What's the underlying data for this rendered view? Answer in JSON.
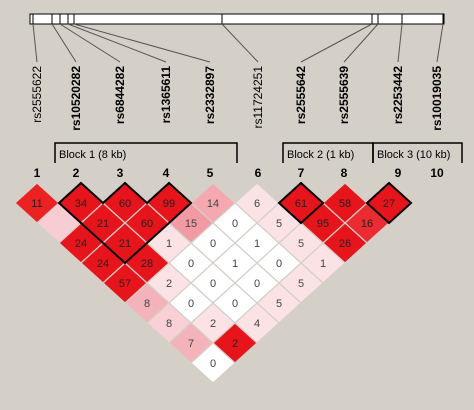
{
  "snps": [
    {
      "index": "1",
      "name": "rs2555622",
      "bold": false
    },
    {
      "index": "2",
      "name": "rs10520282",
      "bold": true
    },
    {
      "index": "3",
      "name": "rs6844282",
      "bold": true
    },
    {
      "index": "4",
      "name": "rs1365611",
      "bold": true
    },
    {
      "index": "5",
      "name": "rs2332897",
      "bold": true
    },
    {
      "index": "6",
      "name": "rs11724251",
      "bold": false
    },
    {
      "index": "7",
      "name": "rs2555642",
      "bold": true
    },
    {
      "index": "8",
      "name": "rs2555639",
      "bold": true
    },
    {
      "index": "9",
      "name": "rs2253442",
      "bold": true
    },
    {
      "index": "10",
      "name": "rs10019035",
      "bold": true
    }
  ],
  "blocks": [
    {
      "label": "Block 1 (8 kb)",
      "from": 2,
      "to": 5
    },
    {
      "label": "Block 2 (1 kb)",
      "from": 7,
      "to": 8
    },
    {
      "label": "Block 3 (10 kb)",
      "from": 9,
      "to": 10
    }
  ],
  "ld_matrix": [
    {
      "i": 1,
      "j": 2,
      "value": "11",
      "color": "#ec2222"
    },
    {
      "i": 2,
      "j": 3,
      "value": "34",
      "color": "#e8141c"
    },
    {
      "i": 3,
      "j": 4,
      "value": "60",
      "color": "#e8141c"
    },
    {
      "i": 4,
      "j": 5,
      "value": "99",
      "color": "#e8141c"
    },
    {
      "i": 5,
      "j": 6,
      "value": "14",
      "color": "#f5a8b0"
    },
    {
      "i": 6,
      "j": 7,
      "value": "6",
      "color": "#fbe2e5"
    },
    {
      "i": 7,
      "j": 8,
      "value": "61",
      "color": "#e8141c"
    },
    {
      "i": 8,
      "j": 9,
      "value": "58",
      "color": "#e8141c"
    },
    {
      "i": 9,
      "j": 10,
      "value": "27",
      "color": "#e8141c"
    },
    {
      "i": 1,
      "j": 3,
      "value": "",
      "color": "#f7ccd2"
    },
    {
      "i": 2,
      "j": 4,
      "value": "21",
      "color": "#e8141c"
    },
    {
      "i": 3,
      "j": 5,
      "value": "60",
      "color": "#e8141c"
    },
    {
      "i": 4,
      "j": 6,
      "value": "15",
      "color": "#f29aa4"
    },
    {
      "i": 5,
      "j": 7,
      "value": "0",
      "color": "#ffffff"
    },
    {
      "i": 6,
      "j": 8,
      "value": "5",
      "color": "#fbe2e5"
    },
    {
      "i": 7,
      "j": 9,
      "value": "95",
      "color": "#e8141c"
    },
    {
      "i": 8,
      "j": 10,
      "value": "16",
      "color": "#ec2a32"
    },
    {
      "i": 1,
      "j": 4,
      "value": "24",
      "color": "#e8141c"
    },
    {
      "i": 2,
      "j": 5,
      "value": "21",
      "color": "#e8141c"
    },
    {
      "i": 3,
      "j": 6,
      "value": "1",
      "color": "#fbe2e5"
    },
    {
      "i": 4,
      "j": 7,
      "value": "0",
      "color": "#ffffff"
    },
    {
      "i": 5,
      "j": 8,
      "value": "1",
      "color": "#ffffff"
    },
    {
      "i": 6,
      "j": 9,
      "value": "5",
      "color": "#fbe2e5"
    },
    {
      "i": 7,
      "j": 10,
      "value": "26",
      "color": "#e8141c"
    },
    {
      "i": 1,
      "j": 5,
      "value": "24",
      "color": "#e8141c"
    },
    {
      "i": 2,
      "j": 6,
      "value": "28",
      "color": "#e8141c"
    },
    {
      "i": 3,
      "j": 7,
      "value": "0",
      "color": "#ffffff"
    },
    {
      "i": 4,
      "j": 8,
      "value": "1",
      "color": "#ffffff"
    },
    {
      "i": 5,
      "j": 9,
      "value": "0",
      "color": "#ffffff"
    },
    {
      "i": 6,
      "j": 10,
      "value": "1",
      "color": "#fbe2e5"
    },
    {
      "i": 1,
      "j": 6,
      "value": "57",
      "color": "#e8141c"
    },
    {
      "i": 2,
      "j": 7,
      "value": "2",
      "color": "#fbe2e5"
    },
    {
      "i": 3,
      "j": 8,
      "value": "0",
      "color": "#ffffff"
    },
    {
      "i": 4,
      "j": 9,
      "value": "0",
      "color": "#ffffff"
    },
    {
      "i": 5,
      "j": 10,
      "value": "5",
      "color": "#fbe2e5"
    },
    {
      "i": 1,
      "j": 7,
      "value": "8",
      "color": "#f4b3ba"
    },
    {
      "i": 2,
      "j": 8,
      "value": "0",
      "color": "#ffffff"
    },
    {
      "i": 3,
      "j": 9,
      "value": "0",
      "color": "#ffffff"
    },
    {
      "i": 4,
      "j": 10,
      "value": "5",
      "color": "#fbe2e5"
    },
    {
      "i": 1,
      "j": 8,
      "value": "8",
      "color": "#f8d0d5"
    },
    {
      "i": 2,
      "j": 9,
      "value": "2",
      "color": "#fbe2e5"
    },
    {
      "i": 3,
      "j": 10,
      "value": "4",
      "color": "#fbe2e5"
    },
    {
      "i": 1,
      "j": 9,
      "value": "7",
      "color": "#f4b3ba"
    },
    {
      "i": 2,
      "j": 10,
      "value": "2",
      "color": "#e8141c"
    },
    {
      "i": 1,
      "j": 10,
      "value": "0",
      "color": "#ffffff"
    }
  ],
  "colors": {
    "background": "#d4d0c8",
    "strong_ld": "#e8141c",
    "no_ld": "#ffffff",
    "outline": "#000000"
  }
}
